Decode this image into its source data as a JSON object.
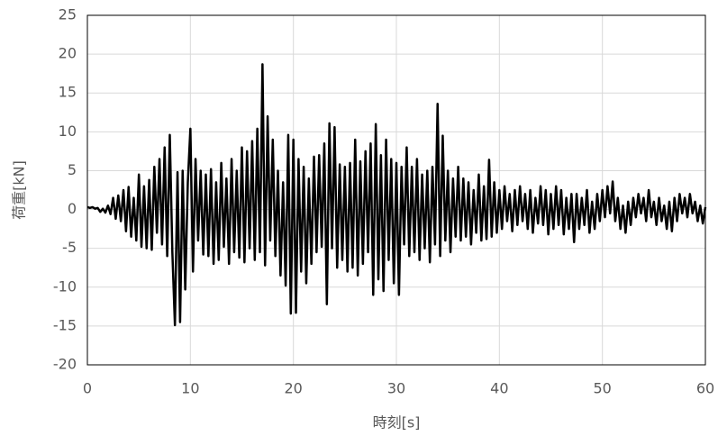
{
  "chart_data": {
    "type": "line",
    "x_label": "時刻[s]",
    "y_label": "荷重[kN]",
    "xlim": [
      0,
      60
    ],
    "xticks": [
      0,
      10,
      20,
      30,
      40,
      50,
      60
    ],
    "ylim": [
      -20,
      25
    ],
    "yticks": [
      -20,
      -15,
      -10,
      -5,
      0,
      5,
      10,
      15,
      20,
      25
    ],
    "grid": true,
    "x": [
      0,
      0.25,
      0.5,
      0.75,
      1,
      1.25,
      1.5,
      1.75,
      2,
      2.25,
      2.5,
      2.75,
      3,
      3.25,
      3.5,
      3.75,
      4,
      4.25,
      4.5,
      4.75,
      5,
      5.25,
      5.5,
      5.75,
      6,
      6.25,
      6.5,
      6.75,
      7,
      7.25,
      7.5,
      7.75,
      8,
      8.25,
      8.5,
      8.75,
      9,
      9.25,
      9.5,
      9.75,
      10,
      10.25,
      10.5,
      10.75,
      11,
      11.25,
      11.5,
      11.75,
      12,
      12.25,
      12.5,
      12.75,
      13,
      13.25,
      13.5,
      13.75,
      14,
      14.25,
      14.5,
      14.75,
      15,
      15.25,
      15.5,
      15.75,
      16,
      16.25,
      16.5,
      16.75,
      17,
      17.25,
      17.5,
      17.75,
      18,
      18.25,
      18.5,
      18.75,
      19,
      19.25,
      19.5,
      19.75,
      20,
      20.25,
      20.5,
      20.75,
      21,
      21.25,
      21.5,
      21.75,
      22,
      22.25,
      22.5,
      22.75,
      23,
      23.25,
      23.5,
      23.75,
      24,
      24.25,
      24.5,
      24.75,
      25,
      25.25,
      25.5,
      25.75,
      26,
      26.25,
      26.5,
      26.75,
      27,
      27.25,
      27.5,
      27.75,
      28,
      28.25,
      28.5,
      28.75,
      29,
      29.25,
      29.5,
      29.75,
      30,
      30.25,
      30.5,
      30.75,
      31,
      31.25,
      31.5,
      31.75,
      32,
      32.25,
      32.5,
      32.75,
      33,
      33.25,
      33.5,
      33.75,
      34,
      34.25,
      34.5,
      34.75,
      35,
      35.25,
      35.5,
      35.75,
      36,
      36.25,
      36.5,
      36.75,
      37,
      37.25,
      37.5,
      37.75,
      38,
      38.25,
      38.5,
      38.75,
      39,
      39.25,
      39.5,
      39.75,
      40,
      40.25,
      40.5,
      40.75,
      41,
      41.25,
      41.5,
      41.75,
      42,
      42.25,
      42.5,
      42.75,
      43,
      43.25,
      43.5,
      43.75,
      44,
      44.25,
      44.5,
      44.75,
      45,
      45.25,
      45.5,
      45.75,
      46,
      46.25,
      46.5,
      46.75,
      47,
      47.25,
      47.5,
      47.75,
      48,
      48.25,
      48.5,
      48.75,
      49,
      49.25,
      49.5,
      49.75,
      50,
      50.25,
      50.5,
      50.75,
      51,
      51.25,
      51.5,
      51.75,
      52,
      52.25,
      52.5,
      52.75,
      53,
      53.25,
      53.5,
      53.75,
      54,
      54.25,
      54.5,
      54.75,
      55,
      55.25,
      55.5,
      55.75,
      56,
      56.25,
      56.5,
      56.75,
      57,
      57.25,
      57.5,
      57.75,
      58,
      58.25,
      58.5,
      58.75,
      59,
      59.25,
      59.5,
      59.75,
      60
    ],
    "series": [
      {
        "color": "#000000",
        "values": [
          0.3,
          0.2,
          0.3,
          0.1,
          0.2,
          -0.3,
          0.1,
          -0.4,
          0.5,
          -0.6,
          1.5,
          -1.2,
          1.8,
          -1.5,
          2.5,
          -2.8,
          2.9,
          -3.5,
          1.5,
          -4.0,
          4.5,
          -4.8,
          3.0,
          -5.0,
          3.8,
          -5.2,
          5.5,
          -3.0,
          6.5,
          -4.5,
          8.0,
          -6.0,
          9.6,
          -5.5,
          -14.9,
          4.8,
          -14.5,
          5.0,
          -10.3,
          3.5,
          10.4,
          -8.0,
          6.5,
          -4.0,
          5.0,
          -5.8,
          4.5,
          -6.0,
          5.2,
          -7.0,
          3.5,
          -6.5,
          6.0,
          -4.8,
          4.0,
          -7.0,
          6.5,
          -5.5,
          5.0,
          -6.2,
          8.0,
          -6.8,
          7.5,
          -5.0,
          8.8,
          -6.5,
          10.4,
          -5.5,
          18.7,
          -7.2,
          12.0,
          -4.0,
          9.0,
          -6.0,
          5.0,
          -8.5,
          3.5,
          -9.8,
          9.6,
          -13.4,
          9.0,
          -13.3,
          6.5,
          -8.0,
          5.5,
          -9.5,
          4.0,
          -7.0,
          6.8,
          -5.5,
          7.0,
          -4.8,
          8.5,
          -12.2,
          11.1,
          -5.0,
          10.6,
          -7.5,
          5.8,
          -6.5,
          5.5,
          -8.0,
          6.0,
          -7.5,
          9.0,
          -8.5,
          6.2,
          -7.0,
          7.5,
          -5.5,
          8.5,
          -11.0,
          11.0,
          -9.0,
          7.0,
          -10.5,
          9.0,
          -6.5,
          6.5,
          -9.5,
          6.0,
          -11.0,
          5.5,
          -4.5,
          8.0,
          -6.0,
          5.5,
          -5.5,
          6.5,
          -6.5,
          4.5,
          -5.0,
          5.0,
          -6.8,
          5.5,
          -4.5,
          13.6,
          -6.0,
          9.5,
          -4.0,
          5.0,
          -5.5,
          4.0,
          -3.5,
          5.5,
          -4.0,
          4.0,
          -3.5,
          3.5,
          -4.5,
          2.5,
          -3.0,
          4.5,
          -4.0,
          3.0,
          -3.8,
          6.4,
          -3.5,
          3.5,
          -3.0,
          2.5,
          -2.5,
          3.0,
          -1.5,
          2.0,
          -2.8,
          2.5,
          -2.0,
          3.0,
          -1.5,
          2.0,
          -2.5,
          2.5,
          -3.0,
          1.5,
          -1.8,
          3.0,
          -2.0,
          2.5,
          -3.2,
          2.0,
          -2.5,
          3.0,
          -2.0,
          2.5,
          -3.2,
          1.5,
          -2.5,
          2.0,
          -4.2,
          2.0,
          -2.5,
          1.5,
          -2.0,
          2.5,
          -3.0,
          1.0,
          -2.5,
          2.0,
          -1.5,
          2.5,
          -1.0,
          3.0,
          -0.5,
          3.6,
          -1.5,
          1.5,
          -2.5,
          0.5,
          -3.0,
          1.0,
          -2.0,
          1.5,
          -1.0,
          2.0,
          -0.5,
          1.5,
          -1.5,
          2.5,
          -1.0,
          1.0,
          -2.0,
          1.5,
          -1.5,
          0.5,
          -2.5,
          1.0,
          -2.8,
          1.5,
          -1.5,
          2.0,
          -0.5,
          1.5,
          -1.0,
          2.0,
          -0.5,
          1.0,
          -1.5,
          0.5,
          -1.8,
          0.3
        ]
      }
    ]
  }
}
